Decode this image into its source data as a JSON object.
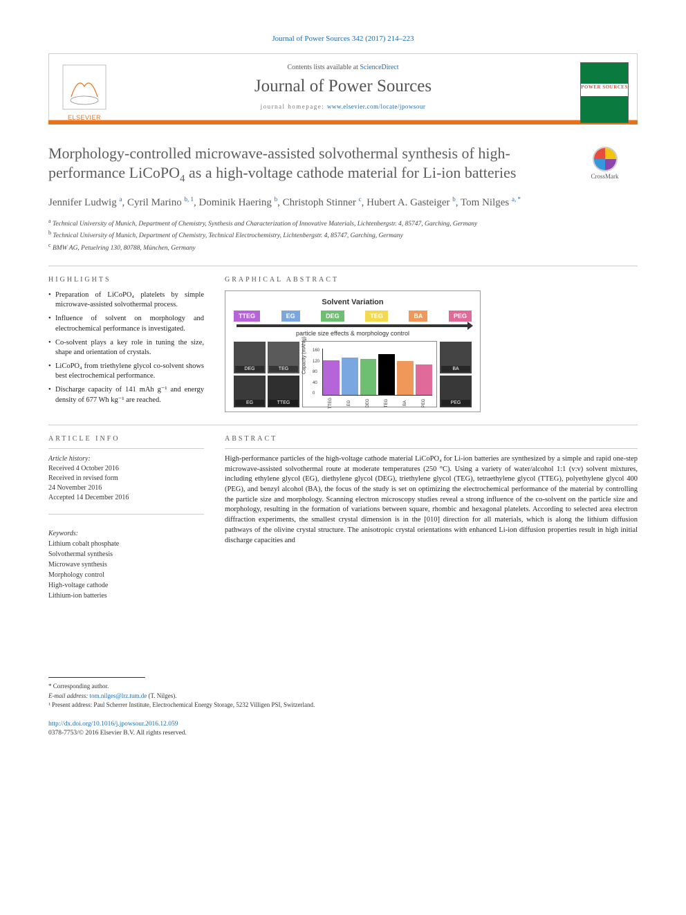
{
  "journal_ref": "Journal of Power Sources 342 (2017) 214–223",
  "header": {
    "contents_prefix": "Contents lists available at ",
    "contents_link": "ScienceDirect",
    "journal_name": "Journal of Power Sources",
    "homepage_prefix": "journal homepage: ",
    "homepage_url": "www.elsevier.com/locate/jpowsour",
    "publisher": "ELSEVIER",
    "cover_text": "POWER SOURCES"
  },
  "article": {
    "title_pre": "Morphology-controlled microwave-assisted solvothermal synthesis of high-performance LiCoPO",
    "title_sub": "4",
    "title_post": " as a high-voltage cathode material for Li-ion batteries",
    "crossmark": "CrossMark"
  },
  "authors_html": "Jennifer Ludwig|a|, Cyril Marino|b, 1|, Dominik Haering|b|, Christoph Stinner|c|, Hubert A. Gasteiger|b|, Tom Nilges|a, *|",
  "authors": [
    {
      "name": "Jennifer Ludwig",
      "sup": "a"
    },
    {
      "name": "Cyril Marino",
      "sup": "b, 1"
    },
    {
      "name": "Dominik Haering",
      "sup": "b"
    },
    {
      "name": "Christoph Stinner",
      "sup": "c"
    },
    {
      "name": "Hubert A. Gasteiger",
      "sup": "b"
    },
    {
      "name": "Tom Nilges",
      "sup": "a, *"
    }
  ],
  "affiliations": [
    {
      "sup": "a",
      "text": "Technical University of Munich, Department of Chemistry, Synthesis and Characterization of Innovative Materials, Lichtenbergstr. 4, 85747, Garching, Germany"
    },
    {
      "sup": "b",
      "text": "Technical University of Munich, Department of Chemistry, Technical Electrochemistry, Lichtenbergstr. 4, 85747, Garching, Germany"
    },
    {
      "sup": "c",
      "text": "BMW AG, Petuelring 130, 80788, München, Germany"
    }
  ],
  "highlights": {
    "label": "HIGHLIGHTS",
    "items": [
      "Preparation of LiCoPO₄ platelets by simple microwave-assisted solvothermal process.",
      "Influence of solvent on morphology and electrochemical performance is investigated.",
      "Co-solvent plays a key role in tuning the size, shape and orientation of crystals.",
      "LiCoPO₄ from triethylene glycol co-solvent shows best electrochemical performance.",
      "Discharge capacity of 141 mAh g⁻¹ and energy density of 677 Wh kg⁻¹ are reached."
    ]
  },
  "graphical_abstract": {
    "label": "GRAPHICAL ABSTRACT",
    "title": "Solvent Variation",
    "subtitle": "particle size effects & morphology control",
    "solvents": [
      {
        "label": "TTEG",
        "color": "#b565d8"
      },
      {
        "label": "EG",
        "color": "#7aa7e0"
      },
      {
        "label": "DEG",
        "color": "#6fbf73"
      },
      {
        "label": "TEG",
        "color": "#f2d94e"
      },
      {
        "label": "BA",
        "color": "#f0975a"
      },
      {
        "label": "PEG",
        "color": "#e06b9a"
      }
    ],
    "thumbs_left": [
      {
        "label": "DEG",
        "bg": "#4a4a4a"
      },
      {
        "label": "TEG",
        "bg": "#5a5a5a"
      },
      {
        "label": "EG",
        "bg": "#3a3a3a"
      },
      {
        "label": "TTEG",
        "bg": "#2f2f2f"
      }
    ],
    "thumbs_right": [
      {
        "label": "BA",
        "bg": "#444444"
      },
      {
        "label": "PEG",
        "bg": "#383838"
      }
    ],
    "chart": {
      "ylabel": "Capacity (mAh/g)",
      "ylim": [
        0,
        160
      ],
      "yticks": [
        0,
        40,
        80,
        120,
        160
      ],
      "bars": [
        {
          "label": "TTEG",
          "value": 120,
          "color": "#b565d8"
        },
        {
          "label": "EG",
          "value": 128,
          "color": "#7aa7e0"
        },
        {
          "label": "DEG",
          "value": 125,
          "color": "#6fbf73"
        },
        {
          "label": "TEG",
          "value": 141,
          "color": "#000000"
        },
        {
          "label": "BA",
          "value": 118,
          "color": "#f0975a"
        },
        {
          "label": "PEG",
          "value": 105,
          "color": "#e06b9a"
        }
      ]
    }
  },
  "article_info": {
    "label": "ARTICLE INFO",
    "history_title": "Article history:",
    "history": [
      "Received 4 October 2016",
      "Received in revised form",
      "24 November 2016",
      "Accepted 14 December 2016"
    ],
    "keywords_title": "Keywords:",
    "keywords": [
      "Lithium cobalt phosphate",
      "Solvothermal synthesis",
      "Microwave synthesis",
      "Morphology control",
      "High-voltage cathode",
      "Lithium-ion batteries"
    ]
  },
  "abstract": {
    "label": "ABSTRACT",
    "text": "High-performance particles of the high-voltage cathode material LiCoPO₄ for Li-ion batteries are synthesized by a simple and rapid one-step microwave-assisted solvothermal route at moderate temperatures (250 °C). Using a variety of water/alcohol 1:1 (v:v) solvent mixtures, including ethylene glycol (EG), diethylene glycol (DEG), triethylene glycol (TEG), tetraethylene glycol (TTEG), polyethylene glycol 400 (PEG), and benzyl alcohol (BA), the focus of the study is set on optimizing the electrochemical performance of the material by controlling the particle size and morphology. Scanning electron microscopy studies reveal a strong influence of the co-solvent on the particle size and morphology, resulting in the formation of variations between square, rhombic and hexagonal platelets. According to selected area electron diffraction experiments, the smallest crystal dimension is in the [010] direction for all materials, which is along the lithium diffusion pathways of the olivine crystal structure. The anisotropic crystal orientations with enhanced Li-ion diffusion properties result in high initial discharge capacities and"
  },
  "footnotes": {
    "corr": "* Corresponding author.",
    "email_label": "E-mail address: ",
    "email": "tom.nilges@lrz.tum.de",
    "email_suffix": " (T. Nilges).",
    "present": "¹ Present address: Paul Scherrer Institute, Electrochemical Energy Storage, 5232 Villigen PSI, Switzerland."
  },
  "doi": {
    "url": "http://dx.doi.org/10.1016/j.jpowsour.2016.12.059",
    "issn_line": "0378-7753/© 2016 Elsevier B.V. All rights reserved."
  },
  "colors": {
    "link": "#1a6bb3",
    "accent": "#e9711c",
    "text": "#333333",
    "heading": "#5c5c5c"
  }
}
